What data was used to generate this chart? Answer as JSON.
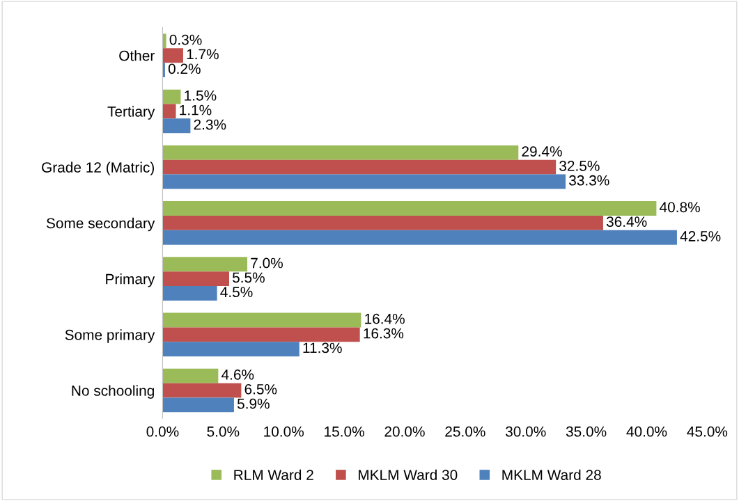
{
  "chart_data": {
    "type": "bar",
    "orientation": "horizontal",
    "categories": [
      "Other",
      "Tertiary",
      "Grade 12 (Matric)",
      "Some secondary",
      "Primary",
      "Some primary",
      "No schooling"
    ],
    "series": [
      {
        "name": "RLM Ward 2",
        "color": "#9bbb59",
        "values": [
          0.3,
          1.5,
          29.4,
          40.8,
          7.0,
          16.4,
          4.6
        ],
        "value_labels": [
          "0.3%",
          "1.5%",
          "29.4%",
          "40.8%",
          "7.0%",
          "16.4%",
          "4.6%"
        ]
      },
      {
        "name": "MKLM Ward 30",
        "color": "#c0504d",
        "values": [
          1.7,
          1.1,
          32.5,
          36.4,
          5.5,
          16.3,
          6.5
        ],
        "value_labels": [
          "1.7%",
          "1.1%",
          "32.5%",
          "36.4%",
          "5.5%",
          "16.3%",
          "6.5%"
        ]
      },
      {
        "name": "MKLM Ward 28",
        "color": "#4f81bd",
        "values": [
          0.2,
          2.3,
          33.3,
          42.5,
          4.5,
          11.3,
          5.9
        ],
        "value_labels": [
          "0.2%",
          "2.3%",
          "33.3%",
          "42.5%",
          "4.5%",
          "11.3%",
          "5.9%"
        ]
      }
    ],
    "xlim": [
      0,
      45
    ],
    "xticks": [
      {
        "value": 0,
        "label": "0.0%"
      },
      {
        "value": 5,
        "label": "5.0%"
      },
      {
        "value": 10,
        "label": "10.0%"
      },
      {
        "value": 15,
        "label": "15.0%"
      },
      {
        "value": 20,
        "label": "20.0%"
      },
      {
        "value": 25,
        "label": "25.0%"
      },
      {
        "value": 30,
        "label": "30.0%"
      },
      {
        "value": 35,
        "label": "35.0%"
      },
      {
        "value": 40,
        "label": "40.0%"
      },
      {
        "value": 45,
        "label": "45.0%"
      }
    ],
    "grid": false,
    "legend": "bottom"
  }
}
